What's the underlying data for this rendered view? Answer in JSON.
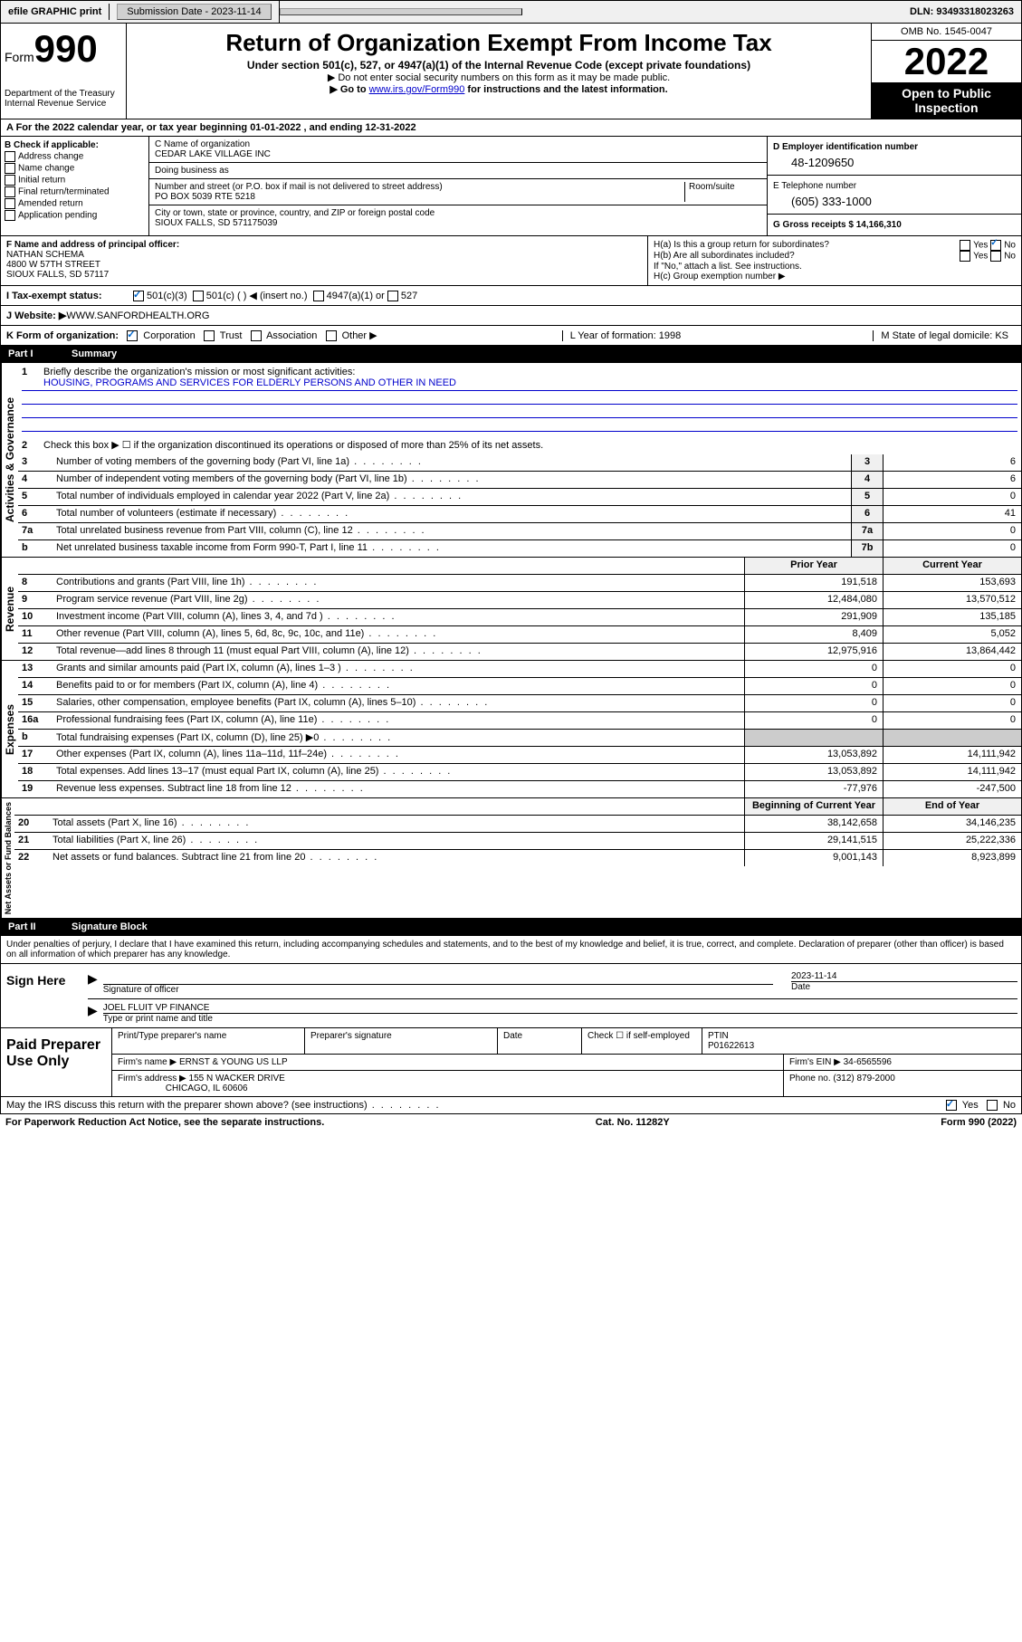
{
  "topbar": {
    "efile": "efile GRAPHIC print",
    "submission_label": "Submission Date - 2023-11-14",
    "dln": "DLN: 93493318023263"
  },
  "header": {
    "form_label": "Form",
    "form_number": "990",
    "dept": "Department of the Treasury",
    "irs": "Internal Revenue Service",
    "title": "Return of Organization Exempt From Income Tax",
    "subtitle": "Under section 501(c), 527, or 4947(a)(1) of the Internal Revenue Code (except private foundations)",
    "note1": "▶ Do not enter social security numbers on this form as it may be made public.",
    "note2_pre": "▶ Go to ",
    "note2_link": "www.irs.gov/Form990",
    "note2_post": " for instructions and the latest information.",
    "omb": "OMB No. 1545-0047",
    "year": "2022",
    "inspect1": "Open to Public",
    "inspect2": "Inspection"
  },
  "row_a": "A For the 2022 calendar year, or tax year beginning 01-01-2022    , and ending 12-31-2022",
  "col_b": {
    "label": "B Check if applicable:",
    "opts": [
      "Address change",
      "Name change",
      "Initial return",
      "Final return/terminated",
      "Amended return",
      "Application pending"
    ]
  },
  "col_c": {
    "name_label": "C Name of organization",
    "name": "CEDAR LAKE VILLAGE INC",
    "dba_label": "Doing business as",
    "addr_label": "Number and street (or P.O. box if mail is not delivered to street address)",
    "room_label": "Room/suite",
    "addr": "PO BOX 5039 RTE 5218",
    "city_label": "City or town, state or province, country, and ZIP or foreign postal code",
    "city": "SIOUX FALLS, SD  571175039"
  },
  "col_d": {
    "d_label": "D Employer identification number",
    "d_val": "48-1209650",
    "e_label": "E Telephone number",
    "e_val": "(605) 333-1000",
    "g_label": "G Gross receipts $ 14,166,310"
  },
  "col_f": {
    "label": "F  Name and address of principal officer:",
    "name": "NATHAN SCHEMA",
    "addr1": "4800 W 57TH STREET",
    "addr2": "SIOUX FALLS, SD  57117"
  },
  "col_h": {
    "ha": "H(a)  Is this a group return for subordinates?",
    "hb": "H(b)  Are all subordinates included?",
    "hb_note": "If \"No,\" attach a list. See instructions.",
    "hc": "H(c)  Group exemption number ▶",
    "yes": "Yes",
    "no": "No"
  },
  "row_i": {
    "label": "I     Tax-exempt status:",
    "o1": "501(c)(3)",
    "o2": "501(c) (  ) ◀ (insert no.)",
    "o3": "4947(a)(1) or",
    "o4": "527"
  },
  "row_j": {
    "label": "J    Website: ▶",
    "val": " WWW.SANFORDHEALTH.ORG"
  },
  "row_k": {
    "label": "K Form of organization:",
    "o1": "Corporation",
    "o2": "Trust",
    "o3": "Association",
    "o4": "Other ▶",
    "l": "L Year of formation: 1998",
    "m": "M State of legal domicile: KS"
  },
  "part1": {
    "label": "Part I",
    "title": "Summary",
    "sections": {
      "gov": "Activities & Governance",
      "rev": "Revenue",
      "exp": "Expenses",
      "net": "Net Assets or Fund Balances"
    },
    "l1": "Briefly describe the organization's mission or most significant activities:",
    "l1_val": "HOUSING, PROGRAMS AND SERVICES FOR ELDERLY PERSONS AND OTHER IN NEED",
    "l2": "Check this box ▶ ☐  if the organization discontinued its operations or disposed of more than 25% of its net assets.",
    "rows_gov": [
      {
        "n": "3",
        "t": "Number of voting members of the governing body (Part VI, line 1a)",
        "b": "3",
        "v": "6"
      },
      {
        "n": "4",
        "t": "Number of independent voting members of the governing body (Part VI, line 1b)",
        "b": "4",
        "v": "6"
      },
      {
        "n": "5",
        "t": "Total number of individuals employed in calendar year 2022 (Part V, line 2a)",
        "b": "5",
        "v": "0"
      },
      {
        "n": "6",
        "t": "Total number of volunteers (estimate if necessary)",
        "b": "6",
        "v": "41"
      },
      {
        "n": "7a",
        "t": "Total unrelated business revenue from Part VIII, column (C), line 12",
        "b": "7a",
        "v": "0"
      },
      {
        "n": "b",
        "t": "Net unrelated business taxable income from Form 990-T, Part I, line 11",
        "b": "7b",
        "v": "0"
      }
    ],
    "prior": "Prior Year",
    "current": "Current Year",
    "rows_rev": [
      {
        "n": "8",
        "t": "Contributions and grants (Part VIII, line 1h)",
        "p": "191,518",
        "c": "153,693"
      },
      {
        "n": "9",
        "t": "Program service revenue (Part VIII, line 2g)",
        "p": "12,484,080",
        "c": "13,570,512"
      },
      {
        "n": "10",
        "t": "Investment income (Part VIII, column (A), lines 3, 4, and 7d )",
        "p": "291,909",
        "c": "135,185"
      },
      {
        "n": "11",
        "t": "Other revenue (Part VIII, column (A), lines 5, 6d, 8c, 9c, 10c, and 11e)",
        "p": "8,409",
        "c": "5,052"
      },
      {
        "n": "12",
        "t": "Total revenue—add lines 8 through 11 (must equal Part VIII, column (A), line 12)",
        "p": "12,975,916",
        "c": "13,864,442"
      }
    ],
    "rows_exp": [
      {
        "n": "13",
        "t": "Grants and similar amounts paid (Part IX, column (A), lines 1–3 )",
        "p": "0",
        "c": "0"
      },
      {
        "n": "14",
        "t": "Benefits paid to or for members (Part IX, column (A), line 4)",
        "p": "0",
        "c": "0"
      },
      {
        "n": "15",
        "t": "Salaries, other compensation, employee benefits (Part IX, column (A), lines 5–10)",
        "p": "0",
        "c": "0"
      },
      {
        "n": "16a",
        "t": "Professional fundraising fees (Part IX, column (A), line 11e)",
        "p": "0",
        "c": "0"
      },
      {
        "n": "b",
        "t": "Total fundraising expenses (Part IX, column (D), line 25) ▶0",
        "p": "",
        "c": "",
        "shaded": true
      },
      {
        "n": "17",
        "t": "Other expenses (Part IX, column (A), lines 11a–11d, 11f–24e)",
        "p": "13,053,892",
        "c": "14,111,942"
      },
      {
        "n": "18",
        "t": "Total expenses. Add lines 13–17 (must equal Part IX, column (A), line 25)",
        "p": "13,053,892",
        "c": "14,111,942"
      },
      {
        "n": "19",
        "t": "Revenue less expenses. Subtract line 18 from line 12",
        "p": "-77,976",
        "c": "-247,500"
      }
    ],
    "begin": "Beginning of Current Year",
    "end": "End of Year",
    "rows_net": [
      {
        "n": "20",
        "t": "Total assets (Part X, line 16)",
        "p": "38,142,658",
        "c": "34,146,235"
      },
      {
        "n": "21",
        "t": "Total liabilities (Part X, line 26)",
        "p": "29,141,515",
        "c": "25,222,336"
      },
      {
        "n": "22",
        "t": "Net assets or fund balances. Subtract line 21 from line 20",
        "p": "9,001,143",
        "c": "8,923,899"
      }
    ]
  },
  "part2": {
    "label": "Part II",
    "title": "Signature Block",
    "perjury": "Under penalties of perjury, I declare that I have examined this return, including accompanying schedules and statements, and to the best of my knowledge and belief, it is true, correct, and complete. Declaration of preparer (other than officer) is based on all information of which preparer has any knowledge.",
    "sign_here": "Sign Here",
    "sig_officer": "Signature of officer",
    "sig_date": "2023-11-14",
    "date": "Date",
    "officer_name": "JOEL FLUIT  VP FINANCE",
    "type_name": "Type or print name and title",
    "paid": "Paid Preparer Use Only",
    "prep_name": "Print/Type preparer's name",
    "prep_sig": "Preparer's signature",
    "check_if": "Check ☐  if self-employed",
    "ptin_label": "PTIN",
    "ptin": "P01622613",
    "firm_name_label": "Firm's name      ▶",
    "firm_name": "ERNST & YOUNG US LLP",
    "firm_ein_label": "Firm's EIN ▶",
    "firm_ein": "34-6565596",
    "firm_addr_label": "Firm's address ▶",
    "firm_addr1": "155 N WACKER DRIVE",
    "firm_addr2": "CHICAGO, IL  60606",
    "phone_label": "Phone no.",
    "phone": "(312) 879-2000"
  },
  "footer": {
    "may_irs": "May the IRS discuss this return with the preparer shown above? (see instructions)",
    "yes": "Yes",
    "no": "No",
    "paperwork": "For Paperwork Reduction Act Notice, see the separate instructions.",
    "cat": "Cat. No. 11282Y",
    "form": "Form 990 (2022)"
  }
}
